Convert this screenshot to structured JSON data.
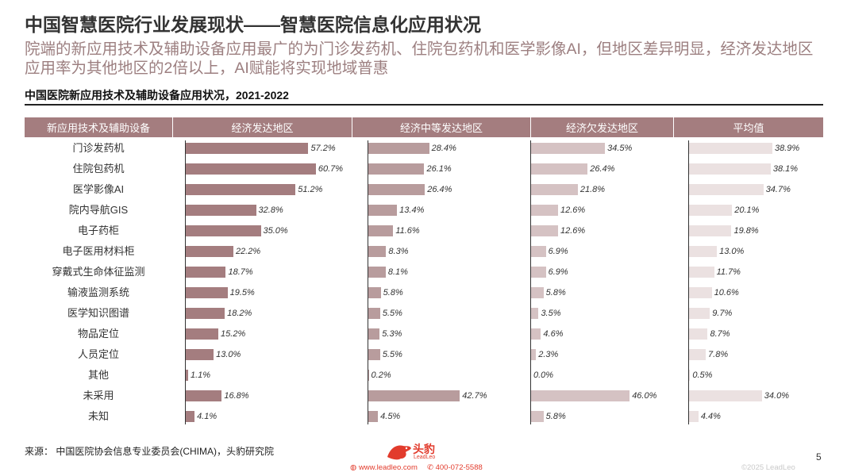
{
  "page": {
    "title": "中国智慧医院行业发展现状——智慧医院信息化应用状况",
    "subtitle": "院端的新应用技术及辅助设备应用最广的为门诊发药机、住院包药机和医学影像AI，但地区差异明显，经济发达地区应用率为其他地区的2倍以上，AI赋能将实现地域普惠",
    "source": "来源：  中国医院协会信息专业委员会(CHIMA)，头豹研究院",
    "page_number": "5",
    "copyright": "©2025 LeadLeo",
    "logo_name": "头豹",
    "logo_sub": "LeadLeo",
    "website": "www.leadleo.com",
    "phone": "400-072-5588"
  },
  "colors": {
    "header_bg": "#a47d7f",
    "developed": "#a47d7f",
    "moderate": "#b89c9d",
    "less_developed": "#d5c2c3",
    "average": "#ebe1e1",
    "subtitle": "#9c7f80",
    "brand": "#e23b2c"
  },
  "chart_data": {
    "type": "bar",
    "title": "中国医院新应用技术及辅助设备应用状况，2021-2022",
    "category_header": "新应用技术及辅助设备",
    "categories": [
      "门诊发药机",
      "住院包药机",
      "医学影像AI",
      "院内导航GIS",
      "电子药柜",
      "电子医用材料柜",
      "穿戴式生命体征监测",
      "输液监测系统",
      "医学知识图谱",
      "物品定位",
      "人员定位",
      "其他",
      "未采用",
      "未知"
    ],
    "series": [
      {
        "name": "经济发达地区",
        "values": [
          57.2,
          60.7,
          51.2,
          32.8,
          35.0,
          22.2,
          18.7,
          19.5,
          18.2,
          15.2,
          13.0,
          1.1,
          16.8,
          4.1
        ],
        "labels": [
          "57.2%",
          "60.7%",
          "51.2%",
          "32.8%",
          "35.0%",
          "22.2%",
          "18.7%",
          "19.5%",
          "18.2%",
          "15.2%",
          "13.0%",
          "1.1%",
          "16.8%",
          "4.1%"
        ]
      },
      {
        "name": "经济中等发达地区",
        "values": [
          28.4,
          26.1,
          26.4,
          13.4,
          11.6,
          8.3,
          8.1,
          5.8,
          5.5,
          5.3,
          5.5,
          0.2,
          42.7,
          4.5
        ],
        "labels": [
          "28.4%",
          "26.1%",
          "26.4%",
          "13.4%",
          "11.6%",
          "8.3%",
          "8.1%",
          "5.8%",
          "5.5%",
          "5.3%",
          "5.5%",
          "0.2%",
          "42.7%",
          "4.5%"
        ]
      },
      {
        "name": "经济欠发达地区",
        "values": [
          34.5,
          26.4,
          21.8,
          12.6,
          12.6,
          6.9,
          6.9,
          5.8,
          3.5,
          4.6,
          2.3,
          0.0,
          46.0,
          5.8
        ],
        "labels": [
          "34.5%",
          "26.4%",
          "21.8%",
          "12.6%",
          "12.6%",
          "6.9%",
          "6.9%",
          "5.8%",
          "3.5%",
          "4.6%",
          "2.3%",
          "0.0%",
          "46.0%",
          "5.8%"
        ]
      },
      {
        "name": "平均值",
        "values": [
          38.9,
          38.1,
          34.7,
          20.1,
          19.8,
          13.0,
          11.7,
          10.6,
          9.7,
          8.7,
          7.8,
          0.5,
          34.0,
          4.4
        ],
        "labels": [
          "38.9%",
          "38.1%",
          "34.7%",
          "20.1%",
          "19.8%",
          "13.0%",
          "11.7%",
          "10.6%",
          "9.7%",
          "8.7%",
          "7.8%",
          "0.5%",
          "34.0%",
          "4.4%"
        ]
      }
    ],
    "xlim": [
      0,
      65
    ],
    "unit": "%"
  }
}
